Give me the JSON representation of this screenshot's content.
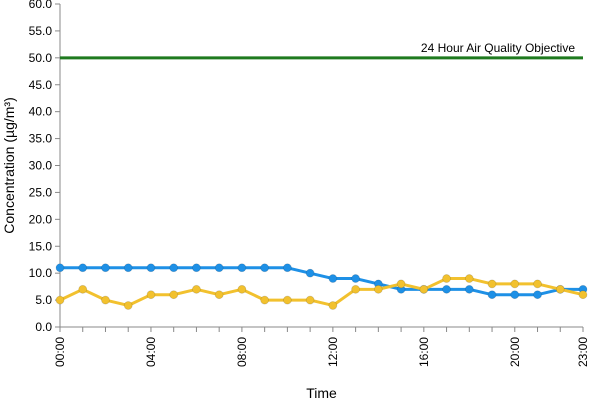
{
  "chart_data": {
    "type": "line",
    "x": [
      "00:00",
      "01:00",
      "02:00",
      "03:00",
      "04:00",
      "05:00",
      "06:00",
      "07:00",
      "08:00",
      "09:00",
      "10:00",
      "11:00",
      "12:00",
      "13:00",
      "14:00",
      "15:00",
      "16:00",
      "17:00",
      "18:00",
      "19:00",
      "20:00",
      "21:00",
      "22:00",
      "23:00"
    ],
    "x_tick_labels": [
      "00:00",
      "04:00",
      "08:00",
      "12:00",
      "16:00",
      "20:00",
      "23:00"
    ],
    "y_tick_labels": [
      "0.0",
      "5.0",
      "10.0",
      "15.0",
      "20.0",
      "25.0",
      "30.0",
      "35.0",
      "40.0",
      "45.0",
      "50.0",
      "55.0",
      "60.0"
    ],
    "xlabel": "Time",
    "ylabel": "Concentration (µg/m³)",
    "ylim": [
      0,
      60
    ],
    "grid": false,
    "series": [
      {
        "color": "#1e90e6",
        "values": [
          11,
          11,
          11,
          11,
          11,
          11,
          11,
          11,
          11,
          11,
          11,
          10,
          9,
          9,
          8,
          7,
          7,
          7,
          7,
          6,
          6,
          6,
          7,
          7
        ]
      },
      {
        "color": "#f2c12e",
        "values": [
          5,
          7,
          5,
          4,
          6,
          6,
          7,
          6,
          7,
          5,
          5,
          5,
          4,
          7,
          7,
          8,
          7,
          9,
          9,
          8,
          8,
          8,
          7,
          6
        ]
      }
    ],
    "reference_line": {
      "value": 50,
      "label": "24 Hour Air Quality Objective",
      "color": "#1f7a1f"
    }
  }
}
